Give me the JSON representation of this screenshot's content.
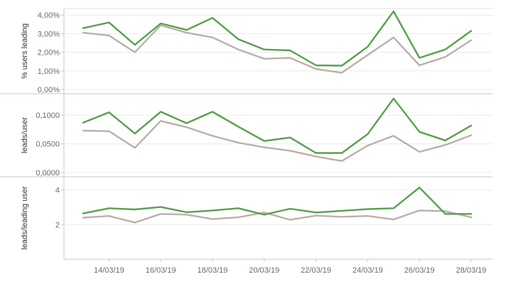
{
  "chart_data": {
    "type": "line",
    "x": [
      "13/03/19",
      "14/03/19",
      "15/03/19",
      "16/03/19",
      "17/03/19",
      "18/03/19",
      "19/03/19",
      "20/03/19",
      "21/03/19",
      "22/03/19",
      "23/03/19",
      "24/03/19",
      "25/03/19",
      "26/03/19",
      "27/03/19",
      "28/03/19"
    ],
    "x_tick_labels": [
      "14/03/19",
      "16/03/19",
      "18/03/19",
      "20/03/19",
      "22/03/19",
      "24/03/19",
      "26/03/19",
      "28/03/19"
    ],
    "colors": {
      "series_a": "#59a14f",
      "series_b": "#bab0ac"
    },
    "grid": true,
    "legend": "none",
    "panels": [
      {
        "ylabel": "% users leading",
        "ylim": [
          0,
          4.2
        ],
        "y_ticks": [
          0,
          1,
          2,
          3,
          4
        ],
        "y_tick_labels": [
          "0,00%",
          "1,00%",
          "2,00%",
          "3,00%",
          "4,00%"
        ],
        "series": [
          {
            "values": [
              3.3,
              3.6,
              2.4,
              3.55,
              3.2,
              3.85,
              2.7,
              2.15,
              2.1,
              1.3,
              1.28,
              2.3,
              4.2,
              1.7,
              2.15,
              3.15
            ]
          },
          {
            "values": [
              3.05,
              2.9,
              2.0,
              3.45,
              3.05,
              2.8,
              2.15,
              1.65,
              1.7,
              1.1,
              0.9,
              1.85,
              2.8,
              1.3,
              1.75,
              2.65
            ]
          }
        ]
      },
      {
        "ylabel": "leads/user",
        "ylim": [
          0,
          0.13
        ],
        "y_ticks": [
          0,
          0.05,
          0.1
        ],
        "y_tick_labels": [
          "0,0000",
          "0,0500",
          "0,1000"
        ],
        "series": [
          {
            "values": [
              0.087,
              0.105,
              0.068,
              0.106,
              0.086,
              0.106,
              0.08,
              0.055,
              0.061,
              0.034,
              0.034,
              0.067,
              0.129,
              0.071,
              0.056,
              0.082
            ]
          },
          {
            "values": [
              0.073,
              0.072,
              0.043,
              0.09,
              0.079,
              0.064,
              0.052,
              0.044,
              0.038,
              0.028,
              0.02,
              0.047,
              0.064,
              0.036,
              0.048,
              0.065
            ]
          }
        ]
      },
      {
        "ylabel": "leads/leading user",
        "ylim": [
          0,
          4.4
        ],
        "y_ticks": [
          2,
          4
        ],
        "y_tick_labels": [
          "2",
          "4"
        ],
        "series": [
          {
            "values": [
              2.65,
              2.95,
              2.88,
              3.02,
              2.72,
              2.82,
              2.95,
              2.58,
              2.92,
              2.7,
              2.8,
              2.9,
              2.95,
              4.15,
              2.62,
              2.62
            ]
          },
          {
            "values": [
              2.4,
              2.5,
              2.12,
              2.62,
              2.58,
              2.32,
              2.42,
              2.7,
              2.28,
              2.52,
              2.45,
              2.5,
              2.3,
              2.82,
              2.78,
              2.42
            ]
          }
        ]
      }
    ]
  }
}
